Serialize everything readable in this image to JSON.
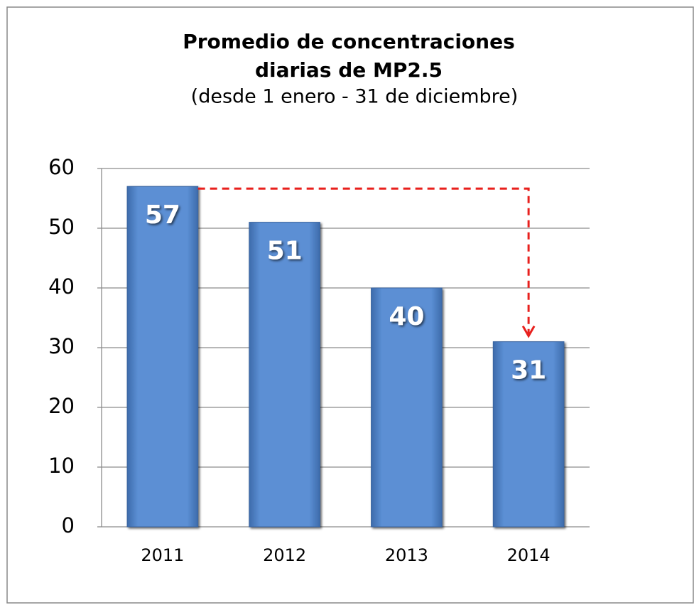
{
  "chart_data": {
    "type": "bar",
    "title": [
      "Promedio de concentraciones",
      "diarias de MP2.5"
    ],
    "subtitle": "(desde 1 enero - 31 de diciembre)",
    "categories": [
      "2011",
      "2012",
      "2013",
      "2014"
    ],
    "values": [
      57,
      51,
      40,
      31
    ],
    "color": "#4f81bd",
    "ylim": [
      0,
      60
    ],
    "yticks": [
      0,
      10,
      20,
      30,
      40,
      50,
      60
    ],
    "grid": true
  }
}
